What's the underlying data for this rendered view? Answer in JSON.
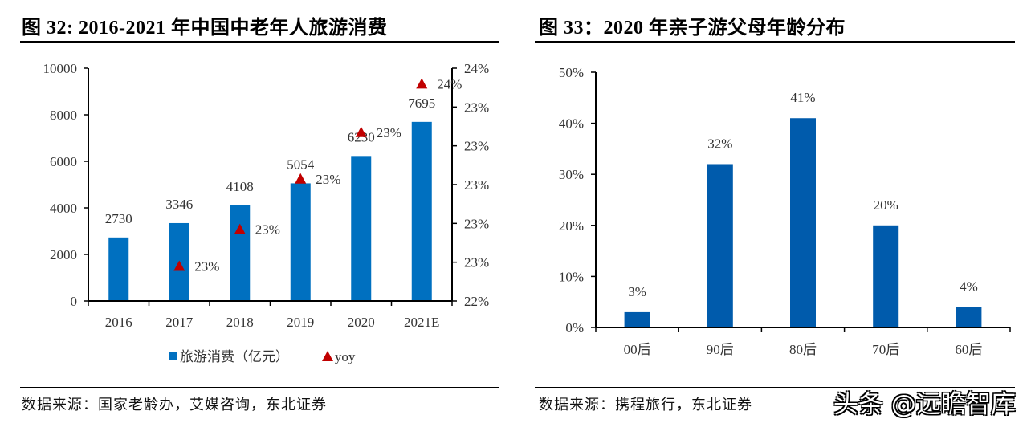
{
  "left_figure": {
    "title": "图  32:    2016-2021 年中国中老年人旅游消费",
    "source": "数据来源：国家老龄办，艾媒咨询，东北证券",
    "legend": {
      "bar_label": "旅游消费（亿元）",
      "line_label": "yoy"
    }
  },
  "right_figure": {
    "title": "图  33：2020 年亲子游父母年龄分布",
    "source": "数据来源：携程旅行，东北证券"
  },
  "watermark": "头条 @远瞻智库",
  "chart_data": [
    {
      "type": "bar",
      "title": "2016-2021 年中国中老年人旅游消费",
      "categories": [
        "2016",
        "2017",
        "2018",
        "2019",
        "2020",
        "2021E"
      ],
      "series": [
        {
          "name": "旅游消费（亿元）",
          "axis": "left",
          "kind": "bar",
          "color": "#0070C0",
          "values": [
            2730,
            3346,
            4108,
            5054,
            6230,
            7695
          ],
          "labels": [
            "2730",
            "3346",
            "4108",
            "5054",
            "6230",
            "7695"
          ]
        },
        {
          "name": "yoy",
          "axis": "right",
          "kind": "scatter-triangle",
          "color": "#C00000",
          "values": [
            null,
            0.2258,
            0.2277,
            0.2303,
            0.2327,
            0.2352
          ],
          "labels": [
            null,
            "23%",
            "23%",
            "23%",
            "23%",
            "24%"
          ]
        }
      ],
      "left_axis": {
        "ylim": [
          0,
          10000
        ],
        "ticks": [
          0,
          2000,
          4000,
          6000,
          8000,
          10000
        ],
        "tick_labels": [
          "0",
          "2000",
          "4000",
          "6000",
          "8000",
          "10000"
        ]
      },
      "right_axis": {
        "ylim": [
          0.224,
          0.236
        ],
        "ticks": [
          0.224,
          0.226,
          0.228,
          0.23,
          0.232,
          0.234,
          0.236
        ],
        "tick_labels": [
          "22%",
          "23%",
          "23%",
          "23%",
          "23%",
          "23%",
          "24%"
        ]
      },
      "xlabel": "",
      "ylabel": "",
      "grid": false,
      "legend_position": "bottom"
    },
    {
      "type": "bar",
      "title": "2020 年亲子游父母年龄分布",
      "categories": [
        "00后",
        "90后",
        "80后",
        "70后",
        "60后"
      ],
      "values": [
        0.03,
        0.32,
        0.41,
        0.2,
        0.04
      ],
      "labels": [
        "3%",
        "32%",
        "41%",
        "20%",
        "4%"
      ],
      "color": "#005BAC",
      "ylim": [
        0,
        0.5
      ],
      "ticks": [
        0,
        0.1,
        0.2,
        0.3,
        0.4,
        0.5
      ],
      "tick_labels": [
        "0%",
        "10%",
        "20%",
        "30%",
        "40%",
        "50%"
      ],
      "xlabel": "",
      "ylabel": "",
      "grid": false,
      "legend_position": "none"
    }
  ]
}
